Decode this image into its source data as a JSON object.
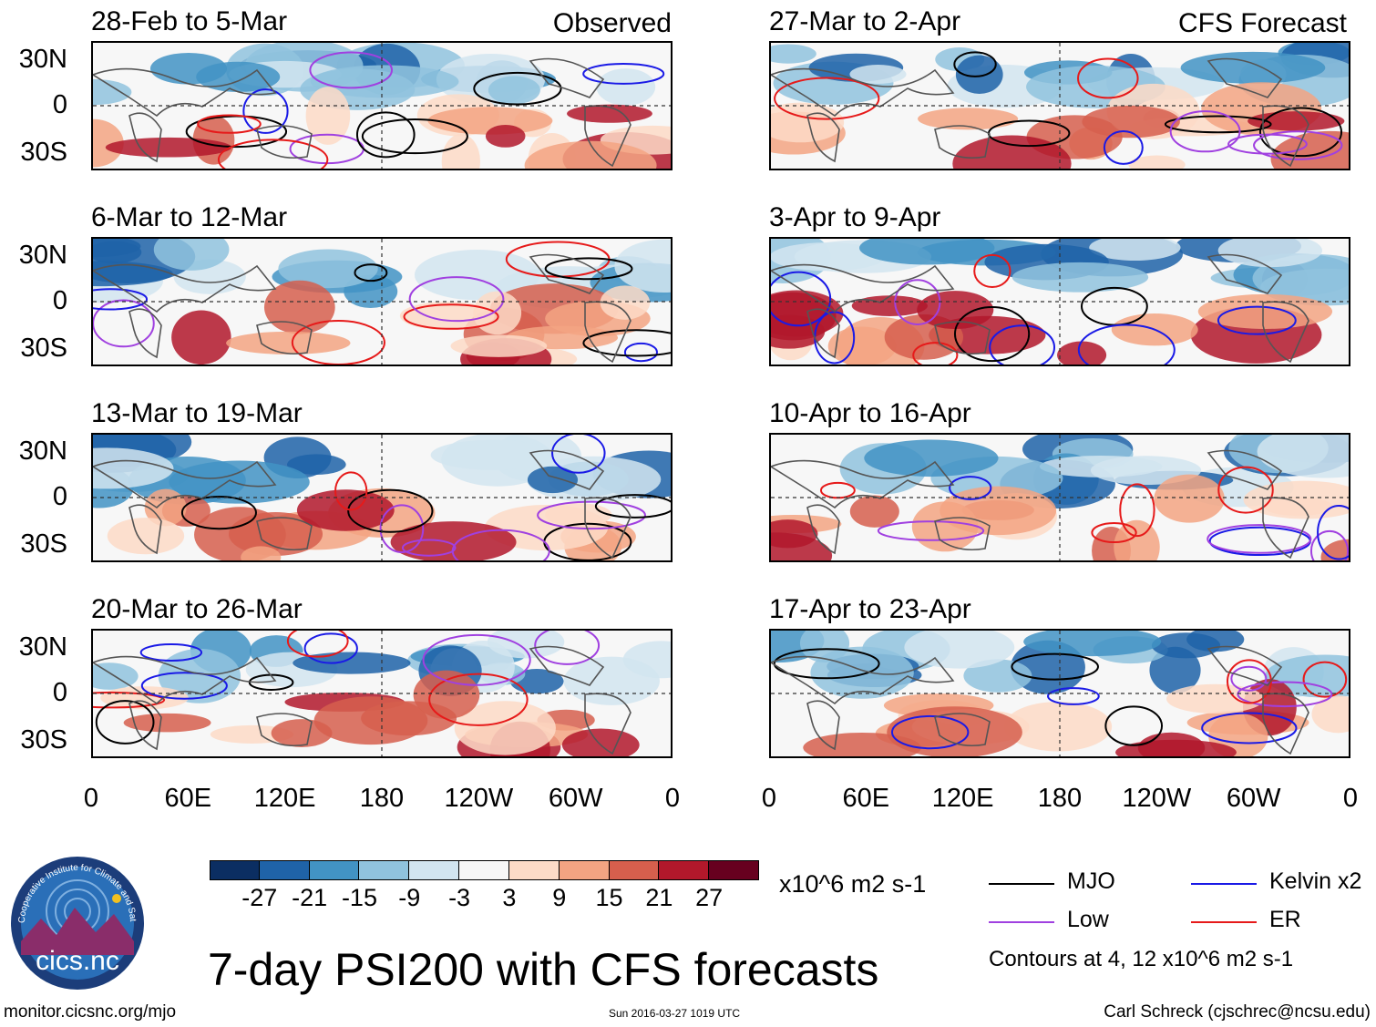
{
  "panels_left": [
    {
      "title": "28-Feb to 5-Mar",
      "tag": "Observed"
    },
    {
      "title": "6-Mar to 12-Mar",
      "tag": ""
    },
    {
      "title": "13-Mar to 19-Mar",
      "tag": ""
    },
    {
      "title": "20-Mar to 26-Mar",
      "tag": ""
    }
  ],
  "panels_right": [
    {
      "title": "27-Mar to 2-Apr",
      "tag": "CFS Forecast"
    },
    {
      "title": "3-Apr to 9-Apr",
      "tag": ""
    },
    {
      "title": "10-Apr to 16-Apr",
      "tag": ""
    },
    {
      "title": "17-Apr to 23-Apr",
      "tag": ""
    }
  ],
  "lat_labels": [
    "30N",
    "0",
    "30S"
  ],
  "lon_labels": [
    "0",
    "60E",
    "120E",
    "180",
    "120W",
    "60W",
    "0"
  ],
  "colorbar": {
    "colors": [
      "#0b2e62",
      "#1f63a8",
      "#4293c4",
      "#90c3de",
      "#d2e5f0",
      "#f7f7f7",
      "#fddbc7",
      "#f3a482",
      "#d65f4d",
      "#b2182b",
      "#67001f"
    ],
    "ticks": [
      "-27",
      "-21",
      "-15",
      "-9",
      "-3",
      "3",
      "9",
      "15",
      "21",
      "27"
    ],
    "units": "x10^6 m2 s-1"
  },
  "legend": {
    "items": [
      {
        "label": "MJO",
        "color": "#000000"
      },
      {
        "label": "Kelvin x2",
        "color": "#1a1ae6"
      },
      {
        "label": "Low",
        "color": "#a040e0"
      },
      {
        "label": "ER",
        "color": "#e61a1a"
      }
    ],
    "contours_note": "Contours at 4, 12 x10^6 m2 s-1"
  },
  "main_title": "7-day PSI200 with CFS forecasts",
  "logo": {
    "ring_text": "Cooperative Institute for Climate and Satellites",
    "text": "cics.nc"
  },
  "footer": {
    "url": "monitor.cicsnc.org/mjo",
    "timestamp": "Sun 2016-03-27 1019 UTC",
    "author": "Carl Schreck (cjschrec@ncsu.edu)"
  }
}
